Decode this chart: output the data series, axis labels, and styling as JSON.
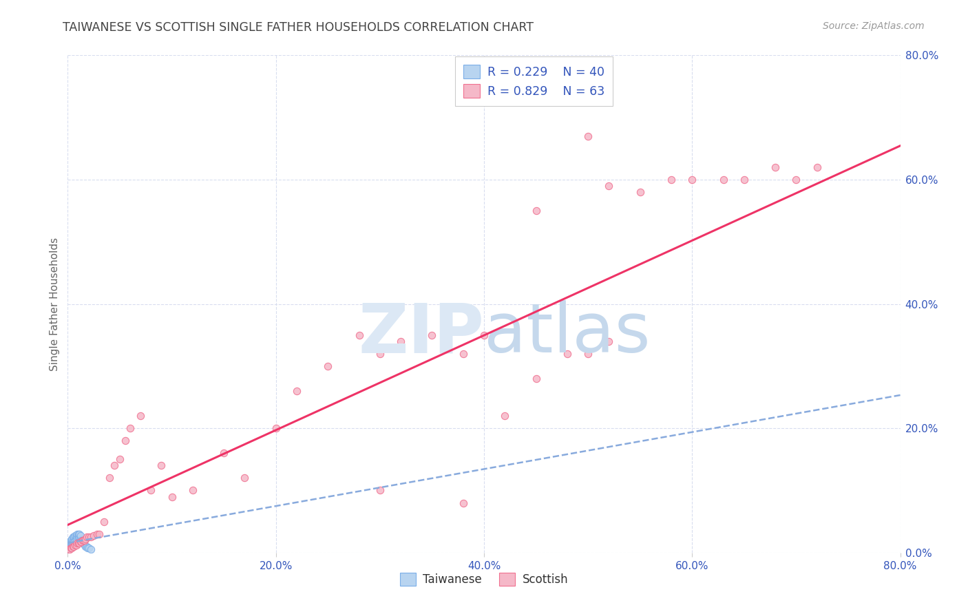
{
  "title": "TAIWANESE VS SCOTTISH SINGLE FATHER HOUSEHOLDS CORRELATION CHART",
  "source": "Source: ZipAtlas.com",
  "ylabel": "Single Father Households",
  "xlim": [
    0.0,
    0.8
  ],
  "ylim": [
    0.0,
    0.8
  ],
  "yticks": [
    0.0,
    0.2,
    0.4,
    0.6,
    0.8
  ],
  "xticks": [
    0.0,
    0.2,
    0.4,
    0.6,
    0.8
  ],
  "taiwanese_color_face": "#b8d4f0",
  "taiwanese_color_edge": "#7aaee8",
  "scottish_color_face": "#f5b8c8",
  "scottish_color_edge": "#f07090",
  "taiwanese_line_color": "#88aadd",
  "scottish_line_color": "#ee3366",
  "background_color": "#ffffff",
  "grid_color": "#d8ddef",
  "title_color": "#444444",
  "label_color": "#3355bb",
  "watermark_color": "#dce8f5",
  "legend_color": "#3355bb",
  "tw_x": [
    0.0005,
    0.001,
    0.001,
    0.0015,
    0.002,
    0.002,
    0.002,
    0.003,
    0.003,
    0.003,
    0.004,
    0.004,
    0.004,
    0.005,
    0.005,
    0.005,
    0.006,
    0.006,
    0.007,
    0.007,
    0.007,
    0.008,
    0.008,
    0.009,
    0.009,
    0.01,
    0.01,
    0.011,
    0.011,
    0.012,
    0.012,
    0.013,
    0.014,
    0.015,
    0.016,
    0.017,
    0.018,
    0.019,
    0.02,
    0.022
  ],
  "tw_y": [
    0.005,
    0.008,
    0.012,
    0.01,
    0.008,
    0.012,
    0.018,
    0.01,
    0.015,
    0.02,
    0.012,
    0.018,
    0.022,
    0.015,
    0.02,
    0.025,
    0.018,
    0.025,
    0.02,
    0.025,
    0.028,
    0.022,
    0.028,
    0.025,
    0.03,
    0.025,
    0.03,
    0.025,
    0.03,
    0.022,
    0.028,
    0.02,
    0.018,
    0.015,
    0.012,
    0.01,
    0.01,
    0.008,
    0.008,
    0.005
  ],
  "sc_x": [
    0.001,
    0.002,
    0.003,
    0.004,
    0.005,
    0.006,
    0.007,
    0.008,
    0.009,
    0.01,
    0.011,
    0.012,
    0.013,
    0.014,
    0.015,
    0.016,
    0.017,
    0.018,
    0.02,
    0.022,
    0.025,
    0.028,
    0.03,
    0.035,
    0.04,
    0.045,
    0.05,
    0.055,
    0.06,
    0.07,
    0.08,
    0.09,
    0.1,
    0.12,
    0.15,
    0.17,
    0.2,
    0.22,
    0.25,
    0.28,
    0.3,
    0.32,
    0.35,
    0.38,
    0.4,
    0.42,
    0.45,
    0.48,
    0.5,
    0.52,
    0.45,
    0.52,
    0.55,
    0.58,
    0.6,
    0.63,
    0.65,
    0.68,
    0.7,
    0.72,
    0.3,
    0.38,
    0.5
  ],
  "sc_y": [
    0.005,
    0.005,
    0.008,
    0.008,
    0.01,
    0.01,
    0.012,
    0.012,
    0.015,
    0.015,
    0.015,
    0.018,
    0.018,
    0.02,
    0.02,
    0.02,
    0.022,
    0.025,
    0.025,
    0.025,
    0.028,
    0.03,
    0.03,
    0.05,
    0.12,
    0.14,
    0.15,
    0.18,
    0.2,
    0.22,
    0.1,
    0.14,
    0.09,
    0.1,
    0.16,
    0.12,
    0.2,
    0.26,
    0.3,
    0.35,
    0.32,
    0.34,
    0.35,
    0.32,
    0.35,
    0.22,
    0.28,
    0.32,
    0.32,
    0.34,
    0.55,
    0.59,
    0.58,
    0.6,
    0.6,
    0.6,
    0.6,
    0.62,
    0.6,
    0.62,
    0.1,
    0.08,
    0.67
  ]
}
